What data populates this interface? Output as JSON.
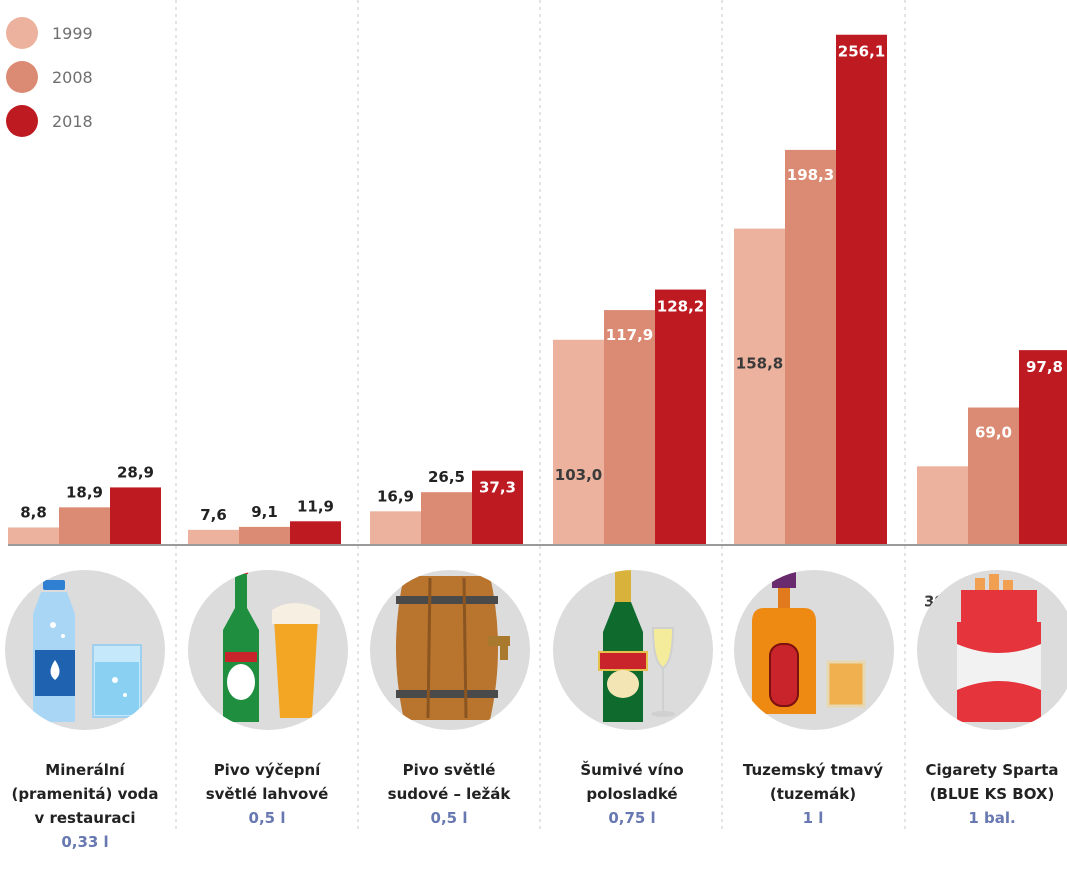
{
  "chart_data": {
    "type": "bar",
    "categories": [
      "Minerální (pramenitá) voda v restauraci",
      "Pivo výčepní světlé lahvové",
      "Pivo světlé sudové – ležák",
      "Šumivé víno polosladké",
      "Tuzemský tmavý (tuzemák)",
      "Cigarety Sparta (BLUE KS BOX)"
    ],
    "units": [
      "0,33 l",
      "0,5 l",
      "0,5 l",
      "0,75 l",
      "1 l",
      "1 bal."
    ],
    "series": [
      {
        "name": "1999",
        "color": "#ecb29e",
        "values": [
          8.8,
          7.6,
          16.9,
          103.0,
          158.8,
          39.5
        ],
        "labels": [
          "8,8",
          "7,6",
          "16,9",
          "103,0",
          "158,8",
          "39,5"
        ]
      },
      {
        "name": "2008",
        "color": "#db8b73",
        "values": [
          18.9,
          9.1,
          26.5,
          117.9,
          198.3,
          69.0
        ],
        "labels": [
          "18,9",
          "9,1",
          "26,5",
          "117,9",
          "198,3",
          "69,0"
        ]
      },
      {
        "name": "2018",
        "color": "#be1a22",
        "values": [
          28.9,
          11.9,
          37.3,
          128.2,
          256.1,
          97.8
        ],
        "labels": [
          "28,9",
          "11,9",
          "37,3",
          "128,2",
          "256,1",
          "97,8"
        ]
      }
    ],
    "legend_position": "top-left",
    "grid": false,
    "ylim": [
      0,
      265
    ]
  },
  "categories_display": [
    {
      "name": "Minerální\n(pramenitá) voda\nv restauraci",
      "unit": "0,33 l",
      "icon": "water-bottle-icon"
    },
    {
      "name": "Pivo výčepní\nsvětlé lahvové",
      "unit": "0,5 l",
      "icon": "beer-bottle-icon"
    },
    {
      "name": "Pivo světlé\nsudové – ležák",
      "unit": "0,5 l",
      "icon": "beer-barrel-icon"
    },
    {
      "name": "Šumivé víno\npolosladké",
      "unit": "0,75 l",
      "icon": "champagne-bottle-icon"
    },
    {
      "name": "Tuzemský tmavý\n(tuzemák)",
      "unit": "1 l",
      "icon": "rum-bottle-icon"
    },
    {
      "name": "Cigarety Sparta\n(BLUE KS BOX)",
      "unit": "1 bal.",
      "icon": "cigarette-pack-icon"
    }
  ]
}
